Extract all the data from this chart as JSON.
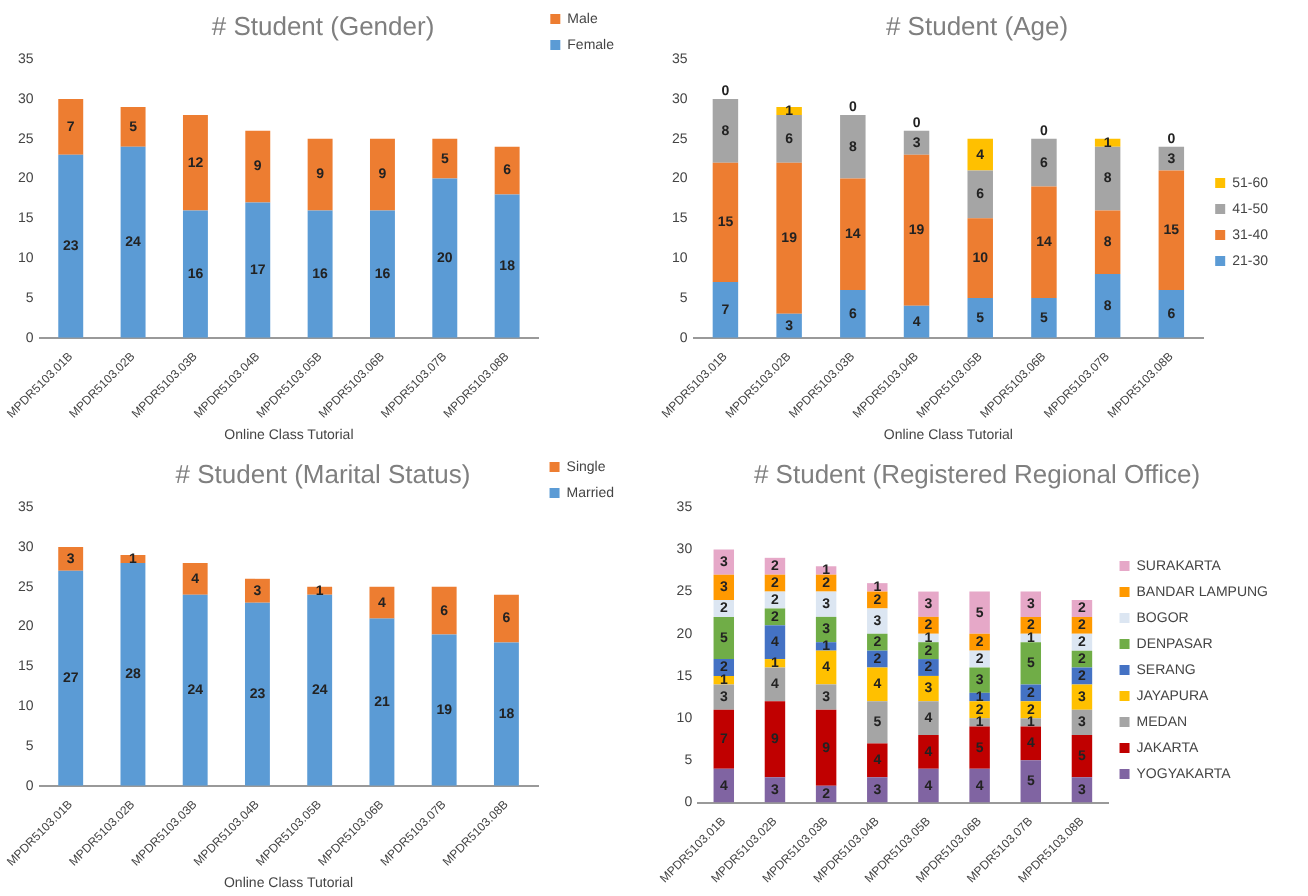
{
  "chart_data": [
    {
      "type": "bar",
      "title": "# Student (Gender)",
      "xlabel": "Online Class Tutorial",
      "stacked": true,
      "data_labels": true,
      "legend": "top right",
      "categories": [
        "MPDR5103.01B",
        "MPDR5103.02B",
        "MPDR5103.03B",
        "MPDR5103.04B",
        "MPDR5103.05B",
        "MPDR5103.06B",
        "MPDR5103.07B",
        "MPDR5103.08B"
      ],
      "ylim": [
        0,
        35
      ],
      "yticks": [
        0,
        5,
        10,
        15,
        20,
        25,
        30,
        35
      ],
      "series": [
        {
          "name": "Female",
          "color": "#5b9bd5",
          "values": [
            23,
            24,
            16,
            17,
            16,
            16,
            20,
            18
          ]
        },
        {
          "name": "Male",
          "color": "#ed7d31",
          "values": [
            7,
            5,
            12,
            9,
            9,
            9,
            5,
            6
          ]
        }
      ]
    },
    {
      "type": "bar",
      "title": "# Student (Age)",
      "xlabel": "Online Class Tutorial",
      "stacked": true,
      "data_labels": true,
      "legend": "right",
      "categories": [
        "MPDR5103.01B",
        "MPDR5103.02B",
        "MPDR5103.03B",
        "MPDR5103.04B",
        "MPDR5103.05B",
        "MPDR5103.06B",
        "MPDR5103.07B",
        "MPDR5103.08B"
      ],
      "ylim": [
        0,
        35
      ],
      "yticks": [
        0,
        5,
        10,
        15,
        20,
        25,
        30,
        35
      ],
      "series": [
        {
          "name": "21-30",
          "color": "#5b9bd5",
          "values": [
            7,
            3,
            6,
            4,
            5,
            5,
            8,
            6
          ]
        },
        {
          "name": "31-40",
          "color": "#ed7d31",
          "values": [
            15,
            19,
            14,
            19,
            10,
            14,
            8,
            15
          ]
        },
        {
          "name": "41-50",
          "color": "#a5a5a5",
          "values": [
            8,
            6,
            8,
            3,
            6,
            6,
            8,
            3
          ]
        },
        {
          "name": "51-60",
          "color": "#ffc000",
          "values": [
            0,
            1,
            0,
            0,
            4,
            0,
            1,
            0
          ]
        }
      ]
    },
    {
      "type": "bar",
      "title": "# Student (Marital Status)",
      "xlabel": "Online Class Tutorial",
      "stacked": true,
      "data_labels": true,
      "legend": "top right",
      "categories": [
        "MPDR5103.01B",
        "MPDR5103.02B",
        "MPDR5103.03B",
        "MPDR5103.04B",
        "MPDR5103.05B",
        "MPDR5103.06B",
        "MPDR5103.07B",
        "MPDR5103.08B"
      ],
      "ylim": [
        0,
        35
      ],
      "yticks": [
        0,
        5,
        10,
        15,
        20,
        25,
        30,
        35
      ],
      "series": [
        {
          "name": "Married",
          "color": "#5b9bd5",
          "values": [
            27,
            28,
            24,
            23,
            24,
            21,
            19,
            18
          ]
        },
        {
          "name": "Single",
          "color": "#ed7d31",
          "values": [
            3,
            1,
            4,
            3,
            1,
            4,
            6,
            6
          ]
        }
      ]
    },
    {
      "type": "bar",
      "title": "# Student (Registered Regional Office)",
      "stacked": true,
      "data_labels": true,
      "legend": "right",
      "categories": [
        "MPDR5103.01B",
        "MPDR5103.02B",
        "MPDR5103.03B",
        "MPDR5103.04B",
        "MPDR5103.05B",
        "MPDR5103.06B",
        "MPDR5103.07B",
        "MPDR5103.08B"
      ],
      "ylim": [
        0,
        35
      ],
      "yticks": [
        0,
        5,
        10,
        15,
        20,
        25,
        30,
        35
      ],
      "series": [
        {
          "name": "YOGYAKARTA",
          "color": "#8064a2",
          "values": [
            4,
            3,
            2,
            3,
            4,
            4,
            5,
            3
          ]
        },
        {
          "name": "JAKARTA",
          "color": "#c00000",
          "values": [
            7,
            9,
            9,
            4,
            4,
            5,
            4,
            5
          ]
        },
        {
          "name": "MEDAN",
          "color": "#a5a5a5",
          "values": [
            3,
            4,
            3,
            5,
            4,
            1,
            1,
            3
          ]
        },
        {
          "name": "JAYAPURA",
          "color": "#ffc000",
          "values": [
            1,
            1,
            4,
            4,
            3,
            2,
            2,
            3
          ]
        },
        {
          "name": "SERANG",
          "color": "#4472c4",
          "values": [
            2,
            4,
            1,
            2,
            2,
            1,
            2,
            2
          ]
        },
        {
          "name": "DENPASAR",
          "color": "#70ad47",
          "values": [
            5,
            2,
            3,
            2,
            2,
            3,
            5,
            2
          ]
        },
        {
          "name": "BOGOR",
          "color": "#dce6f2",
          "values": [
            2,
            2,
            3,
            3,
            1,
            2,
            1,
            2
          ]
        },
        {
          "name": "BANDAR LAMPUNG",
          "color": "#ff9900",
          "values": [
            3,
            2,
            2,
            2,
            2,
            2,
            2,
            2
          ]
        },
        {
          "name": "SURAKARTA",
          "color": "#e6a8c8",
          "values": [
            3,
            2,
            1,
            1,
            3,
            5,
            3,
            2
          ]
        }
      ]
    }
  ]
}
